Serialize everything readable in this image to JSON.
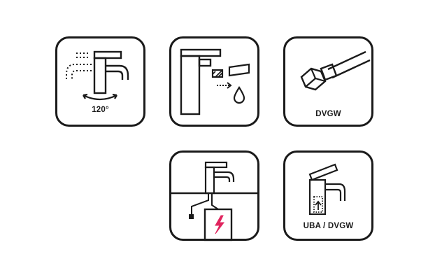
{
  "icons": {
    "swivel": {
      "name": "swivel-spout-icon",
      "label": "120°"
    },
    "aerator": {
      "name": "aerator-cleaning-icon"
    },
    "hose": {
      "name": "connection-hose-icon",
      "label": "DVGW"
    },
    "electric": {
      "name": "under-sink-water-heater-icon"
    },
    "uba": {
      "name": "pop-up-waste-icon",
      "label": "UBA / DVGW"
    }
  },
  "colors": {
    "stroke": "#1a1a1a",
    "accent": "#e0245e",
    "background": "#ffffff"
  }
}
